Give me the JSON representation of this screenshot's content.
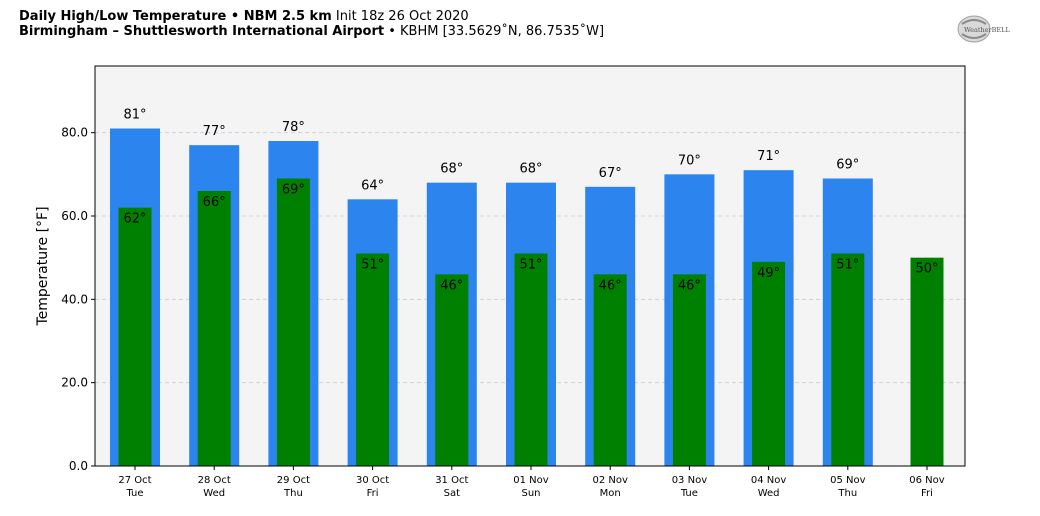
{
  "header": {
    "title_bold": "Daily High/Low Temperature • NBM 2.5 km",
    "title_rest": " Init 18z 26 Oct 2020",
    "location_bold": "Birmingham – Shuttlesworth International Airport",
    "location_rest": " • KBHM [33.5629˚N, 86.7535˚W]"
  },
  "logo": {
    "text": "WeatherBELL"
  },
  "colors": {
    "high_bar": "#2c84ee",
    "low_bar": "#008000",
    "plot_bg": "#f4f4f4",
    "grid": "#cccccc"
  },
  "chart_data": {
    "type": "bar",
    "ylabel": "Temperature [°F]",
    "ylim": [
      0,
      96
    ],
    "yticks": [
      "0.0",
      "20.0",
      "40.0",
      "60.0",
      "80.0"
    ],
    "ytick_values": [
      0,
      20,
      40,
      60,
      80
    ],
    "grid": true,
    "categories": [
      {
        "date": "27 Oct",
        "day": "Tue"
      },
      {
        "date": "28 Oct",
        "day": "Wed"
      },
      {
        "date": "29 Oct",
        "day": "Thu"
      },
      {
        "date": "30 Oct",
        "day": "Fri"
      },
      {
        "date": "31 Oct",
        "day": "Sat"
      },
      {
        "date": "01 Nov",
        "day": "Sun"
      },
      {
        "date": "02 Nov",
        "day": "Mon"
      },
      {
        "date": "03 Nov",
        "day": "Tue"
      },
      {
        "date": "04 Nov",
        "day": "Wed"
      },
      {
        "date": "05 Nov",
        "day": "Thu"
      },
      {
        "date": "06 Nov",
        "day": "Fri"
      }
    ],
    "series": [
      {
        "key": "high",
        "values": [
          81,
          77,
          78,
          64,
          68,
          68,
          67,
          70,
          71,
          69,
          null
        ],
        "labels": [
          "81°",
          "77°",
          "78°",
          "64°",
          "68°",
          "68°",
          "67°",
          "70°",
          "71°",
          "69°",
          null
        ]
      },
      {
        "key": "low",
        "values": [
          62,
          66,
          69,
          51,
          46,
          51,
          46,
          46,
          49,
          51,
          50
        ],
        "labels": [
          "62°",
          "66°",
          "69°",
          "51°",
          "46°",
          "51°",
          "46°",
          "46°",
          "49°",
          "51°",
          "50°"
        ]
      }
    ]
  }
}
